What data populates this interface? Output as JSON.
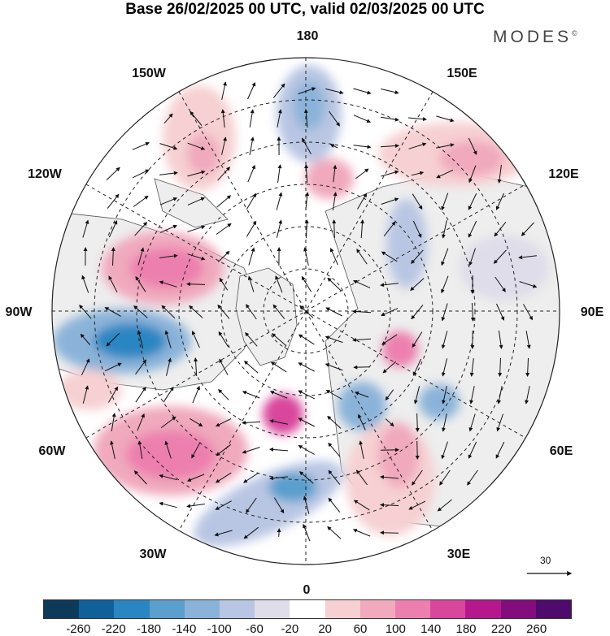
{
  "title": "Base 26/02/2025 00 UTC, valid 02/03/2025 00 UTC",
  "brand": "MODES",
  "brand_mark": "©",
  "longitude_labels": {
    "top": "180",
    "top_left": "150W",
    "top_right": "150E",
    "upper_left": "120W",
    "upper_right": "120E",
    "left": "90W",
    "right": "90E",
    "lower_left": "60W",
    "lower_right": "60E",
    "bottom_left": "30W",
    "bottom_right": "30E",
    "bottom": "0"
  },
  "reference_vector": {
    "label": "30"
  },
  "colorbar": {
    "ticks": [
      "-260",
      "-220",
      "-180",
      "-140",
      "-100",
      "-60",
      "-20",
      "20",
      "60",
      "100",
      "140",
      "180",
      "220",
      "260"
    ],
    "colors": [
      "#0e3a5a",
      "#10619a",
      "#2a86c2",
      "#5a9fcd",
      "#8bb3d9",
      "#b9c6e3",
      "#dedde9",
      "#ffffff",
      "#f6d0d2",
      "#f0a9bd",
      "#ec7fae",
      "#d9479c",
      "#b5188d",
      "#840d7d",
      "#4f0a6e"
    ]
  },
  "map": {
    "projection": "north-polar-stereographic",
    "colors": {
      "land": "#eeeeee",
      "coast": "#555555",
      "graticule": "#222222"
    },
    "anomaly_centers": [
      {
        "name": "north-america-west",
        "value": 170
      },
      {
        "name": "canada-east",
        "value": -220
      },
      {
        "name": "north-atlantic-west",
        "value": 150
      },
      {
        "name": "siberia",
        "value": 120
      }
    ]
  }
}
